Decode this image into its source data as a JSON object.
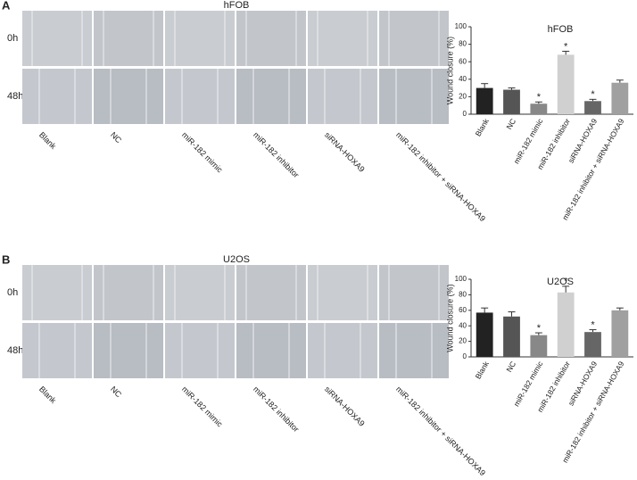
{
  "figure": {
    "panels": [
      {
        "label": "A",
        "title": "hFOB",
        "rows": [
          "0h",
          "48h"
        ],
        "columns": [
          "Blank",
          "NC",
          "miR-182 mimic",
          "miR-182 inhibitor",
          "siRNA-HOXA9",
          "miR-182 inhibitor + siRNA-HOXA9"
        ]
      },
      {
        "label": "B",
        "title": "U2OS",
        "rows": [
          "0h",
          "48h"
        ],
        "columns": [
          "Blank",
          "NC",
          "miR-182 mimic",
          "miR-182 inhibitor",
          "siRNA-HOXA9",
          "miR-182 inhibitor + siRNA-HOXA9"
        ]
      }
    ]
  },
  "chart_data": [
    {
      "type": "bar",
      "title": "hFOB",
      "y_label": "Wound closure (%)",
      "categories": [
        "Blank",
        "NC",
        "miR-182 mimic",
        "miR-182 inhibitor",
        "siRNA-HOXA9",
        "miR-182 inhibitor + siRNA-HOXA9"
      ],
      "values": [
        30,
        28,
        12,
        68,
        15,
        36
      ],
      "errors": [
        5,
        2,
        2,
        4,
        2,
        3
      ],
      "colors": [
        "#222222",
        "#555555",
        "#888888",
        "#d0d0d0",
        "#666666",
        "#a0a0a0"
      ],
      "markers": [
        null,
        null,
        "*",
        "*",
        "*",
        null
      ],
      "ylim": [
        0,
        100
      ],
      "yticks": [
        0,
        20,
        40,
        60,
        80,
        100
      ]
    },
    {
      "type": "bar",
      "title": "U2OS",
      "y_label": "Wound closure (%)",
      "categories": [
        "Blank",
        "NC",
        "miR-182 mimic",
        "miR-182 inhibitor",
        "siRNA-HOXA9",
        "miR-182 inhibitor + siRNA-HOXA9"
      ],
      "values": [
        57,
        52,
        28,
        83,
        32,
        60
      ],
      "errors": [
        6,
        6,
        3,
        8,
        3,
        3
      ],
      "colors": [
        "#222222",
        "#555555",
        "#888888",
        "#d0d0d0",
        "#666666",
        "#a0a0a0"
      ],
      "markers": [
        null,
        null,
        "*",
        "*",
        "*",
        null
      ],
      "ylim": [
        0,
        100
      ],
      "yticks": [
        0,
        20,
        40,
        60,
        80,
        100
      ]
    }
  ]
}
